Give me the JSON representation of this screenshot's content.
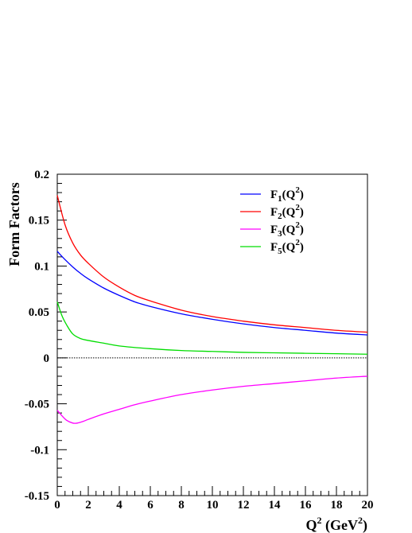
{
  "chart_data": {
    "type": "line",
    "xlabel": "Q",
    "xlabel_sup": "2",
    "xlabel_unit": " (GeV",
    "xlabel_unit_sup": "2",
    "xlabel_close": ")",
    "ylabel": "Form Factors",
    "xlim": [
      0,
      20
    ],
    "ylim": [
      -0.15,
      0.2
    ],
    "xticks": [
      0,
      2,
      4,
      6,
      8,
      10,
      12,
      14,
      16,
      18,
      20
    ],
    "xtick_labels": [
      "0",
      "2",
      "4",
      "6",
      "8",
      "10",
      "12",
      "14",
      "16",
      "18",
      "20"
    ],
    "yticks": [
      -0.15,
      -0.1,
      -0.05,
      0,
      0.05,
      0.1,
      0.15,
      0.2
    ],
    "ytick_labels": [
      "-0.15",
      "-0.1",
      "-0.05",
      "0",
      "0.05",
      "0.1",
      "0.15",
      "0.2"
    ],
    "zero_line": true,
    "grid": false,
    "legend_position": "top-right",
    "series": [
      {
        "name": "F1(Q2)",
        "name_main": "F",
        "name_sub": "1",
        "name_open": "(Q",
        "name_sup": "2",
        "name_close": ")",
        "color": "#0000ff",
        "x": [
          0,
          0.5,
          1,
          1.5,
          2,
          3,
          4,
          5,
          6,
          8,
          10,
          12,
          14,
          16,
          18,
          20
        ],
        "y": [
          0.116,
          0.107,
          0.099,
          0.092,
          0.086,
          0.076,
          0.068,
          0.061,
          0.056,
          0.048,
          0.042,
          0.037,
          0.033,
          0.03,
          0.027,
          0.025
        ]
      },
      {
        "name": "F2(Q2)",
        "name_main": "F",
        "name_sub": "2",
        "name_open": "(Q",
        "name_sup": "2",
        "name_close": ")",
        "color": "#ff0000",
        "x": [
          0,
          0.5,
          1,
          1.5,
          2,
          3,
          4,
          5,
          6,
          8,
          10,
          12,
          14,
          16,
          18,
          20
        ],
        "y": [
          0.177,
          0.145,
          0.125,
          0.112,
          0.103,
          0.088,
          0.077,
          0.068,
          0.062,
          0.052,
          0.045,
          0.04,
          0.036,
          0.033,
          0.03,
          0.028
        ]
      },
      {
        "name": "F3(Q2)",
        "name_main": "F",
        "name_sub": "3",
        "name_open": "(Q",
        "name_sup": "2",
        "name_close": ")",
        "color": "#ff00ff",
        "x": [
          0,
          0.3,
          0.6,
          1,
          1.3,
          1.7,
          2,
          3,
          4,
          5,
          6,
          8,
          10,
          12,
          14,
          16,
          18,
          20
        ],
        "y": [
          -0.057,
          -0.063,
          -0.068,
          -0.071,
          -0.071,
          -0.069,
          -0.067,
          -0.061,
          -0.056,
          -0.051,
          -0.047,
          -0.04,
          -0.035,
          -0.031,
          -0.028,
          -0.025,
          -0.022,
          -0.02
        ]
      },
      {
        "name": "F5(Q2)",
        "name_main": "F",
        "name_sub": "5",
        "name_open": "(Q",
        "name_sup": "2",
        "name_close": ")",
        "color": "#00dd00",
        "x": [
          0,
          0.3,
          0.6,
          1,
          1.5,
          2,
          3,
          4,
          6,
          8,
          10,
          12,
          14,
          16,
          18,
          20
        ],
        "y": [
          0.061,
          0.046,
          0.036,
          0.026,
          0.021,
          0.019,
          0.016,
          0.013,
          0.01,
          0.008,
          0.007,
          0.006,
          0.0055,
          0.005,
          0.0045,
          0.004
        ]
      }
    ]
  }
}
